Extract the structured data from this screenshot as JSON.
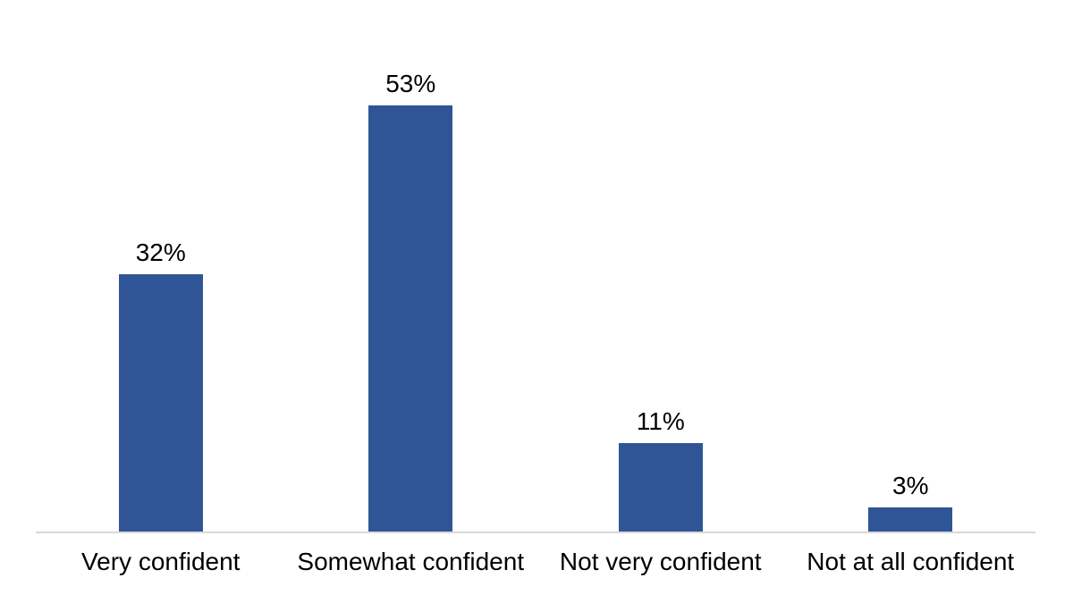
{
  "chart_data": {
    "type": "bar",
    "title": "",
    "categories": [
      "Very confident",
      "Somewhat confident",
      "Not very confident",
      "Not at all confident"
    ],
    "values": [
      32,
      53,
      11,
      3
    ],
    "data_labels": [
      "32%",
      "53%",
      "11%",
      "3%"
    ],
    "xlabel": "",
    "ylabel": "",
    "ylim": [
      0,
      60
    ],
    "y_axis_visible": false,
    "gridlines": false,
    "legend": "none",
    "bar_color": "#2F5596",
    "axis_line_color": "#D9D9D9",
    "label_color": "#000000",
    "background_color": "#FFFFFF"
  }
}
